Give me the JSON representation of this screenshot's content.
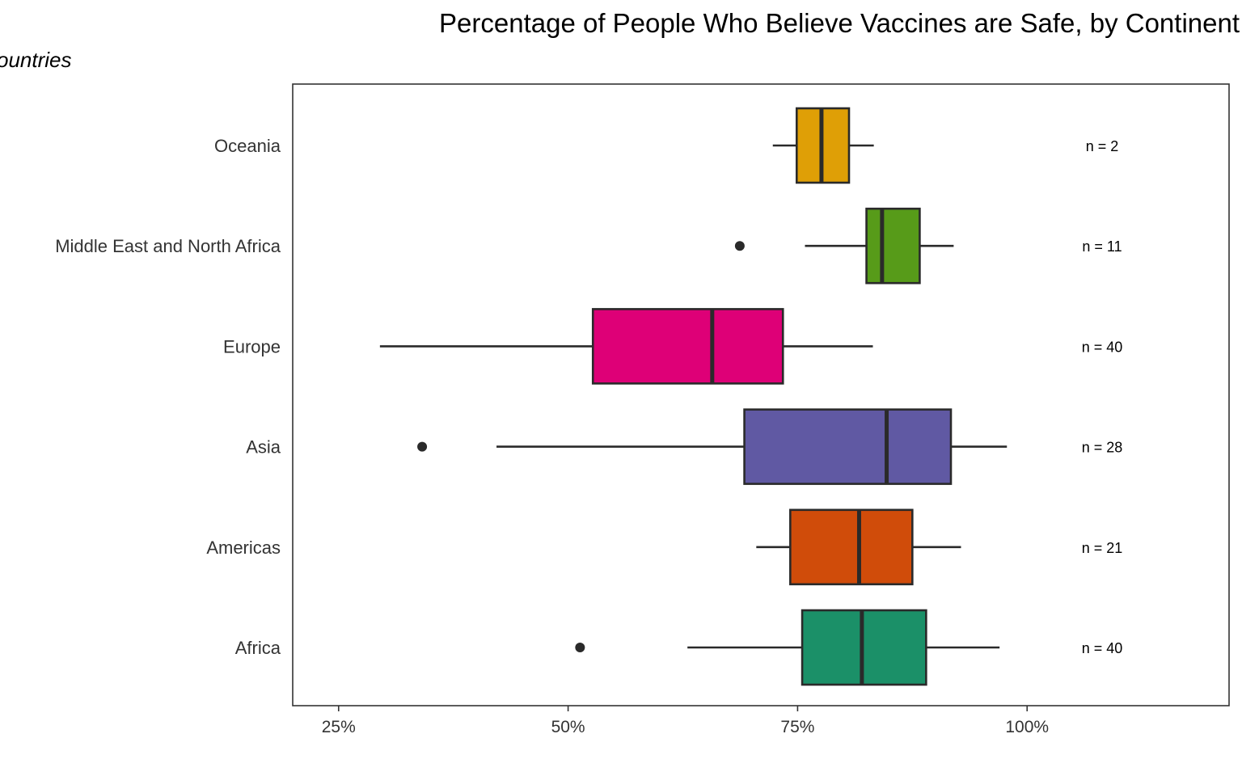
{
  "chart_data": {
    "type": "boxplot",
    "title": "Percentage of People Who Believe Vaccines are Safe, by Continent",
    "subtitle": "ountries",
    "xlabel": "",
    "ylabel": "",
    "xlim": [
      20,
      122
    ],
    "x_ticks": [
      25,
      50,
      75,
      100
    ],
    "x_tick_labels": [
      "25%",
      "50%",
      "75%",
      "100%"
    ],
    "grid": false,
    "categories": [
      "Africa",
      "Americas",
      "Asia",
      "Europe",
      "Middle East and North Africa",
      "Oceania"
    ],
    "boxes": [
      {
        "category": "Africa",
        "whisker_low": 63,
        "q1": 75.5,
        "median": 82,
        "q3": 89,
        "whisker_high": 97,
        "outliers": [
          51.3
        ],
        "n_label": "n = 40",
        "color": "#1b9068"
      },
      {
        "category": "Americas",
        "whisker_low": 70.5,
        "q1": 74.2,
        "median": 81.7,
        "q3": 87.5,
        "whisker_high": 92.8,
        "outliers": [],
        "n_label": "n = 21",
        "color": "#d04c0a"
      },
      {
        "category": "Asia",
        "whisker_low": 42.2,
        "q1": 69.2,
        "median": 84.7,
        "q3": 91.7,
        "whisker_high": 97.8,
        "outliers": [
          34.1
        ],
        "n_label": "n = 28",
        "color": "#6059a3"
      },
      {
        "category": "Europe",
        "whisker_low": 29.5,
        "q1": 52.7,
        "median": 65.7,
        "q3": 73.4,
        "whisker_high": 83.2,
        "outliers": [],
        "n_label": "n = 40",
        "color": "#de0077"
      },
      {
        "category": "Middle East and North Africa",
        "whisker_low": 75.8,
        "q1": 82.5,
        "median": 84.2,
        "q3": 88.3,
        "whisker_high": 92,
        "outliers": [
          68.7
        ],
        "n_label": "n = 11",
        "color": "#579b19"
      },
      {
        "category": "Oceania",
        "whisker_low": 72.3,
        "q1": 74.9,
        "median": 77.6,
        "q3": 80.6,
        "whisker_high": 83.3,
        "outliers": [],
        "n_label": "n = 2",
        "color": "#df9f06"
      }
    ],
    "outline_color": "#2a2a2a"
  }
}
